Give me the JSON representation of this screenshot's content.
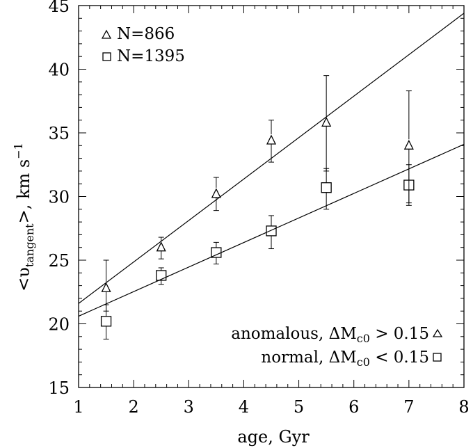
{
  "chart_data": {
    "type": "scatter",
    "title": "",
    "xlabel": "age, Gyr",
    "ylabel": {
      "prefix": "<υ",
      "subscript": "tangent",
      "suffix": ">,  km s",
      "superscript": "−1"
    },
    "xlim": [
      1,
      8
    ],
    "ylim": [
      15,
      45
    ],
    "x_ticks": [
      "1",
      "2",
      "3",
      "4",
      "5",
      "6",
      "7",
      "8"
    ],
    "y_ticks": [
      "15",
      "20",
      "25",
      "30",
      "35",
      "40",
      "45"
    ],
    "grid": false,
    "legend": {
      "placement": "top-left",
      "entries": [
        {
          "marker": "triangle",
          "label": "N=866"
        },
        {
          "marker": "square",
          "label": "N=1395"
        }
      ]
    },
    "annotations": [
      {
        "marker": "triangle",
        "text": "anomalous, ΔM",
        "sub": "c0",
        "tail": " > 0.15"
      },
      {
        "marker": "square",
        "text": "normal, ΔM",
        "sub": "c0",
        "tail": " < 0.15"
      }
    ],
    "series": [
      {
        "name": "anomalous",
        "marker": "triangle",
        "points": [
          {
            "x": 1.5,
            "y": 22.8,
            "err_low": 21.0,
            "err_high": 25.0
          },
          {
            "x": 2.5,
            "y": 26.0,
            "err_low": 25.1,
            "err_high": 26.8
          },
          {
            "x": 3.5,
            "y": 30.2,
            "err_low": 28.9,
            "err_high": 31.5
          },
          {
            "x": 4.5,
            "y": 34.4,
            "err_low": 32.7,
            "err_high": 36.0
          },
          {
            "x": 5.5,
            "y": 35.8,
            "err_low": 32.0,
            "err_high": 39.5
          },
          {
            "x": 7.0,
            "y": 34.0,
            "err_low": 29.5,
            "err_high": 38.3
          }
        ],
        "fit_line": {
          "x": [
            1,
            8
          ],
          "y": [
            21.6,
            44.4
          ]
        }
      },
      {
        "name": "normal",
        "marker": "square",
        "points": [
          {
            "x": 1.5,
            "y": 20.2,
            "err_low": 18.8,
            "err_high": 21.5
          },
          {
            "x": 2.5,
            "y": 23.8,
            "err_low": 23.1,
            "err_high": 24.4
          },
          {
            "x": 3.5,
            "y": 25.6,
            "err_low": 24.7,
            "err_high": 26.4
          },
          {
            "x": 4.5,
            "y": 27.3,
            "err_low": 25.9,
            "err_high": 28.5
          },
          {
            "x": 5.5,
            "y": 30.7,
            "err_low": 29.0,
            "err_high": 32.2
          },
          {
            "x": 7.0,
            "y": 30.9,
            "err_low": 29.3,
            "err_high": 32.5
          }
        ],
        "fit_line": {
          "x": [
            1,
            8
          ],
          "y": [
            20.6,
            34.1
          ]
        }
      }
    ]
  }
}
